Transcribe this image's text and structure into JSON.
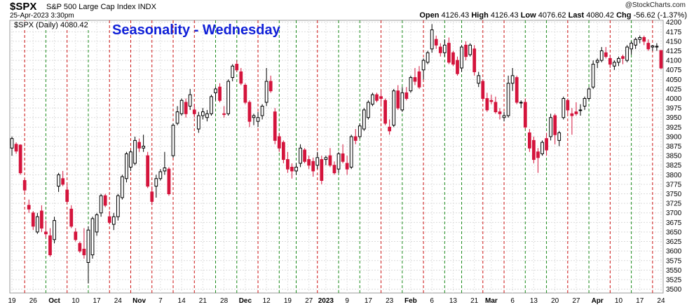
{
  "header": {
    "symbol": "$SPX",
    "description": "S&P 500 Large Cap Index  INDX",
    "datetime": "25-Apr-2023 3:30pm",
    "watermark": "@StockCharts.com",
    "open_label": "Open",
    "open": "4126.43",
    "high_label": "High",
    "high": "4126.43",
    "low_label": "Low",
    "low": "4076.62",
    "last_label": "Last",
    "last": "4080.42",
    "chg_label": "Chg",
    "chg": "-56.62 (-1.37%)"
  },
  "legend": "$SPX (Daily) 4080.42",
  "chart_data": {
    "type": "candlestick",
    "title": "Seasonality - Wednesday",
    "ylim": [
      3490,
      4205
    ],
    "y_ticks": [
      3500,
      3525,
      3550,
      3575,
      3600,
      3625,
      3650,
      3675,
      3700,
      3725,
      3750,
      3775,
      3800,
      3825,
      3850,
      3875,
      3900,
      3925,
      3950,
      3975,
      4000,
      4025,
      4050,
      4075,
      4100,
      4125,
      4150,
      4175,
      4200
    ],
    "x_tick_labels": [
      "19",
      "26",
      "Oct",
      "10",
      "17",
      "24",
      "Nov",
      "7",
      "14",
      "21",
      "28",
      "Dec",
      "12",
      "19",
      "27",
      "2023",
      "9",
      "17",
      "23",
      "Feb",
      "6",
      "13",
      "21",
      "Mar",
      "6",
      "13",
      "20",
      "27",
      "Apr",
      "10",
      "17",
      "24"
    ],
    "x_tick_bar_index": [
      0,
      5,
      10,
      15,
      20,
      25,
      30,
      35,
      40,
      45,
      50,
      55,
      60,
      65,
      70,
      74,
      79,
      84,
      89,
      94,
      99,
      104,
      109,
      113,
      118,
      123,
      128,
      133,
      138,
      143,
      148,
      153
    ],
    "wednesday_lines": {
      "colors": {
        "up": "#1a8a1a",
        "down": "#cc1111"
      },
      "days": [
        {
          "bar": 3,
          "dir": "down"
        },
        {
          "bar": 8,
          "dir": "up"
        },
        {
          "bar": 13,
          "dir": "down"
        },
        {
          "bar": 18,
          "dir": "up"
        },
        {
          "bar": 23,
          "dir": "down"
        },
        {
          "bar": 28,
          "dir": "down"
        },
        {
          "bar": 33,
          "dir": "down"
        },
        {
          "bar": 38,
          "dir": "down"
        },
        {
          "bar": 43,
          "dir": "down"
        },
        {
          "bar": 48,
          "dir": "up"
        },
        {
          "bar": 53,
          "dir": "up"
        },
        {
          "bar": 58,
          "dir": "down"
        },
        {
          "bar": 63,
          "dir": "up"
        },
        {
          "bar": 67,
          "dir": "up"
        },
        {
          "bar": 72,
          "dir": "down"
        },
        {
          "bar": 77,
          "dir": "up"
        },
        {
          "bar": 82,
          "dir": "up"
        },
        {
          "bar": 87,
          "dir": "down"
        },
        {
          "bar": 92,
          "dir": "up"
        },
        {
          "bar": 97,
          "dir": "down"
        },
        {
          "bar": 102,
          "dir": "up"
        },
        {
          "bar": 106,
          "dir": "up"
        },
        {
          "bar": 111,
          "dir": "down"
        },
        {
          "bar": 116,
          "dir": "down"
        },
        {
          "bar": 121,
          "dir": "up"
        },
        {
          "bar": 126,
          "dir": "up"
        },
        {
          "bar": 131,
          "dir": "down"
        },
        {
          "bar": 136,
          "dir": "up"
        },
        {
          "bar": 141,
          "dir": "down"
        },
        {
          "bar": 146,
          "dir": "up"
        },
        {
          "bar": 151,
          "dir": "down"
        }
      ]
    },
    "candles": [
      {
        "o": 3870,
        "h": 3900,
        "l": 3850,
        "c": 3895
      },
      {
        "o": 3880,
        "h": 3885,
        "l": 3855,
        "c": 3862
      },
      {
        "o": 3878,
        "h": 3880,
        "l": 3800,
        "c": 3805
      },
      {
        "o": 3785,
        "h": 3790,
        "l": 3755,
        "c": 3760
      },
      {
        "o": 3720,
        "h": 3735,
        "l": 3700,
        "c": 3710
      },
      {
        "o": 3700,
        "h": 3705,
        "l": 3655,
        "c": 3665
      },
      {
        "o": 3650,
        "h": 3700,
        "l": 3645,
        "c": 3690
      },
      {
        "o": 3705,
        "h": 3720,
        "l": 3650,
        "c": 3660
      },
      {
        "o": 3650,
        "h": 3680,
        "l": 3635,
        "c": 3645
      },
      {
        "o": 3640,
        "h": 3660,
        "l": 3585,
        "c": 3590
      },
      {
        "o": 3630,
        "h": 3690,
        "l": 3620,
        "c": 3680
      },
      {
        "o": 3770,
        "h": 3805,
        "l": 3755,
        "c": 3800
      },
      {
        "o": 3790,
        "h": 3810,
        "l": 3770,
        "c": 3775
      },
      {
        "o": 3760,
        "h": 3775,
        "l": 3725,
        "c": 3730
      },
      {
        "o": 3710,
        "h": 3720,
        "l": 3660,
        "c": 3665
      },
      {
        "o": 3650,
        "h": 3660,
        "l": 3625,
        "c": 3630
      },
      {
        "o": 3620,
        "h": 3625,
        "l": 3595,
        "c": 3600
      },
      {
        "o": 3605,
        "h": 3660,
        "l": 3580,
        "c": 3590
      },
      {
        "o": 3570,
        "h": 3665,
        "l": 3515,
        "c": 3655
      },
      {
        "o": 3590,
        "h": 3690,
        "l": 3580,
        "c": 3685
      },
      {
        "o": 3650,
        "h": 3700,
        "l": 3640,
        "c": 3695
      },
      {
        "o": 3700,
        "h": 3750,
        "l": 3690,
        "c": 3745
      },
      {
        "o": 3745,
        "h": 3750,
        "l": 3715,
        "c": 3720
      },
      {
        "o": 3690,
        "h": 3705,
        "l": 3670,
        "c": 3675
      },
      {
        "o": 3670,
        "h": 3700,
        "l": 3655,
        "c": 3690
      },
      {
        "o": 3690,
        "h": 3750,
        "l": 3680,
        "c": 3745
      },
      {
        "o": 3740,
        "h": 3800,
        "l": 3735,
        "c": 3795
      },
      {
        "o": 3790,
        "h": 3860,
        "l": 3780,
        "c": 3855
      },
      {
        "o": 3820,
        "h": 3865,
        "l": 3810,
        "c": 3860
      },
      {
        "o": 3830,
        "h": 3900,
        "l": 3825,
        "c": 3890
      },
      {
        "o": 3885,
        "h": 3895,
        "l": 3860,
        "c": 3870
      },
      {
        "o": 3870,
        "h": 3905,
        "l": 3860,
        "c": 3875
      },
      {
        "o": 3850,
        "h": 3860,
        "l": 3765,
        "c": 3770
      },
      {
        "o": 3755,
        "h": 3770,
        "l": 3720,
        "c": 3730
      },
      {
        "o": 3770,
        "h": 3800,
        "l": 3740,
        "c": 3790
      },
      {
        "o": 3790,
        "h": 3815,
        "l": 3785,
        "c": 3808
      },
      {
        "o": 3810,
        "h": 3860,
        "l": 3800,
        "c": 3818
      },
      {
        "o": 3815,
        "h": 3820,
        "l": 3745,
        "c": 3750
      },
      {
        "o": 3850,
        "h": 3935,
        "l": 3845,
        "c": 3930
      },
      {
        "o": 3935,
        "h": 3980,
        "l": 3930,
        "c": 3965
      },
      {
        "o": 3960,
        "h": 4000,
        "l": 3955,
        "c": 3995
      },
      {
        "o": 3990,
        "h": 4000,
        "l": 3950,
        "c": 3960
      },
      {
        "o": 3980,
        "h": 4025,
        "l": 3970,
        "c": 4010
      },
      {
        "o": 3970,
        "h": 3985,
        "l": 3950,
        "c": 3960
      },
      {
        "o": 3920,
        "h": 3965,
        "l": 3910,
        "c": 3955
      },
      {
        "o": 3955,
        "h": 3975,
        "l": 3945,
        "c": 3965
      },
      {
        "o": 3950,
        "h": 3970,
        "l": 3940,
        "c": 3960
      },
      {
        "o": 3960,
        "h": 4010,
        "l": 3955,
        "c": 4005
      },
      {
        "o": 4015,
        "h": 4030,
        "l": 3995,
        "c": 4025
      },
      {
        "o": 4030,
        "h": 4040,
        "l": 3990,
        "c": 3995
      },
      {
        "o": 3960,
        "h": 3980,
        "l": 3950,
        "c": 3958
      },
      {
        "o": 3960,
        "h": 4050,
        "l": 3955,
        "c": 4045
      },
      {
        "o": 4055,
        "h": 4090,
        "l": 4045,
        "c": 4085
      },
      {
        "o": 4090,
        "h": 4100,
        "l": 4070,
        "c": 4075
      },
      {
        "o": 4070,
        "h": 4080,
        "l": 4035,
        "c": 4040
      },
      {
        "o": 4035,
        "h": 4040,
        "l": 3985,
        "c": 3990
      },
      {
        "o": 3990,
        "h": 3995,
        "l": 3925,
        "c": 3940
      },
      {
        "o": 3950,
        "h": 3960,
        "l": 3930,
        "c": 3955
      },
      {
        "o": 3940,
        "h": 3965,
        "l": 3925,
        "c": 3950
      },
      {
        "o": 3955,
        "h": 3985,
        "l": 3945,
        "c": 3980
      },
      {
        "o": 3990,
        "h": 4080,
        "l": 3980,
        "c": 4045
      },
      {
        "o": 4045,
        "h": 4060,
        "l": 4015,
        "c": 4020
      },
      {
        "o": 3965,
        "h": 3975,
        "l": 3880,
        "c": 3890
      },
      {
        "o": 3900,
        "h": 3910,
        "l": 3860,
        "c": 3870
      },
      {
        "o": 3885,
        "h": 3890,
        "l": 3830,
        "c": 3840
      },
      {
        "o": 3840,
        "h": 3860,
        "l": 3805,
        "c": 3815
      },
      {
        "o": 3820,
        "h": 3830,
        "l": 3790,
        "c": 3810
      },
      {
        "o": 3810,
        "h": 3830,
        "l": 3800,
        "c": 3820
      },
      {
        "o": 3830,
        "h": 3880,
        "l": 3820,
        "c": 3870
      },
      {
        "o": 3865,
        "h": 3870,
        "l": 3830,
        "c": 3835
      },
      {
        "o": 3840,
        "h": 3850,
        "l": 3815,
        "c": 3825
      },
      {
        "o": 3835,
        "h": 3845,
        "l": 3795,
        "c": 3810
      },
      {
        "o": 3825,
        "h": 3860,
        "l": 3815,
        "c": 3845
      },
      {
        "o": 3840,
        "h": 3850,
        "l": 3775,
        "c": 3785
      },
      {
        "o": 3840,
        "h": 3850,
        "l": 3825,
        "c": 3845
      },
      {
        "o": 3850,
        "h": 3870,
        "l": 3820,
        "c": 3825
      },
      {
        "o": 3825,
        "h": 3835,
        "l": 3800,
        "c": 3805
      },
      {
        "o": 3815,
        "h": 3860,
        "l": 3805,
        "c": 3855
      },
      {
        "o": 3855,
        "h": 3880,
        "l": 3830,
        "c": 3835
      },
      {
        "o": 3830,
        "h": 3850,
        "l": 3800,
        "c": 3815
      },
      {
        "o": 3820,
        "h": 3905,
        "l": 3815,
        "c": 3900
      },
      {
        "o": 3900,
        "h": 3920,
        "l": 3880,
        "c": 3890
      },
      {
        "o": 3900,
        "h": 3935,
        "l": 3895,
        "c": 3928
      },
      {
        "o": 3920,
        "h": 3975,
        "l": 3915,
        "c": 3970
      },
      {
        "o": 3950,
        "h": 3995,
        "l": 3945,
        "c": 3990
      },
      {
        "o": 3985,
        "h": 4015,
        "l": 3980,
        "c": 4010
      },
      {
        "o": 4010,
        "h": 4015,
        "l": 3990,
        "c": 3995
      },
      {
        "o": 4005,
        "h": 4020,
        "l": 3985,
        "c": 4000
      },
      {
        "o": 3995,
        "h": 4000,
        "l": 3930,
        "c": 3935
      },
      {
        "o": 3925,
        "h": 3945,
        "l": 3905,
        "c": 3915
      },
      {
        "o": 3930,
        "h": 4025,
        "l": 3925,
        "c": 4020
      },
      {
        "o": 4020,
        "h": 4035,
        "l": 3970,
        "c": 3975
      },
      {
        "o": 3970,
        "h": 4030,
        "l": 3965,
        "c": 4015
      },
      {
        "o": 4015,
        "h": 4030,
        "l": 3995,
        "c": 4000
      },
      {
        "o": 4020,
        "h": 4060,
        "l": 4015,
        "c": 4055
      },
      {
        "o": 4055,
        "h": 4080,
        "l": 4035,
        "c": 4045
      },
      {
        "o": 4070,
        "h": 4085,
        "l": 4025,
        "c": 4030
      },
      {
        "o": 4075,
        "h": 4105,
        "l": 4050,
        "c": 4100
      },
      {
        "o": 4095,
        "h": 4125,
        "l": 4090,
        "c": 4120
      },
      {
        "o": 4130,
        "h": 4195,
        "l": 4120,
        "c": 4180
      },
      {
        "o": 4155,
        "h": 4165,
        "l": 4130,
        "c": 4140
      },
      {
        "o": 4135,
        "h": 4145,
        "l": 4110,
        "c": 4120
      },
      {
        "o": 4120,
        "h": 4155,
        "l": 4110,
        "c": 4140
      },
      {
        "o": 4145,
        "h": 4160,
        "l": 4090,
        "c": 4095
      },
      {
        "o": 4120,
        "h": 4125,
        "l": 4085,
        "c": 4090
      },
      {
        "o": 4100,
        "h": 4110,
        "l": 4060,
        "c": 4065
      },
      {
        "o": 4080,
        "h": 4140,
        "l": 4070,
        "c": 4135
      },
      {
        "o": 4140,
        "h": 4150,
        "l": 4100,
        "c": 4110
      },
      {
        "o": 4115,
        "h": 4145,
        "l": 4110,
        "c": 4140
      },
      {
        "o": 4130,
        "h": 4140,
        "l": 4060,
        "c": 4070
      },
      {
        "o": 4040,
        "h": 4070,
        "l": 4030,
        "c": 4060
      },
      {
        "o": 4045,
        "h": 4050,
        "l": 3995,
        "c": 4000
      },
      {
        "o": 4000,
        "h": 4015,
        "l": 3965,
        "c": 3970
      },
      {
        "o": 3995,
        "h": 4010,
        "l": 3985,
        "c": 3992
      },
      {
        "o": 3990,
        "h": 4005,
        "l": 3960,
        "c": 3965
      },
      {
        "o": 3965,
        "h": 3975,
        "l": 3945,
        "c": 3960
      },
      {
        "o": 3950,
        "h": 3965,
        "l": 3940,
        "c": 3955
      },
      {
        "o": 3955,
        "h": 4060,
        "l": 3950,
        "c": 4040
      },
      {
        "o": 4040,
        "h": 4080,
        "l": 4020,
        "c": 4060
      },
      {
        "o": 4055,
        "h": 4060,
        "l": 3985,
        "c": 3990
      },
      {
        "o": 3990,
        "h": 3995,
        "l": 3975,
        "c": 3990
      },
      {
        "o": 3990,
        "h": 4000,
        "l": 3920,
        "c": 3925
      },
      {
        "o": 3910,
        "h": 3920,
        "l": 3860,
        "c": 3870
      },
      {
        "o": 3890,
        "h": 3900,
        "l": 3830,
        "c": 3840
      },
      {
        "o": 3860,
        "h": 3870,
        "l": 3805,
        "c": 3845
      },
      {
        "o": 3855,
        "h": 3890,
        "l": 3850,
        "c": 3885
      },
      {
        "o": 3895,
        "h": 3910,
        "l": 3850,
        "c": 3865
      },
      {
        "o": 3900,
        "h": 3960,
        "l": 3890,
        "c": 3950
      },
      {
        "o": 3955,
        "h": 3960,
        "l": 3880,
        "c": 3905
      },
      {
        "o": 3890,
        "h": 3915,
        "l": 3875,
        "c": 3910
      },
      {
        "o": 3950,
        "h": 4005,
        "l": 3945,
        "c": 4000
      },
      {
        "o": 3995,
        "h": 4000,
        "l": 3960,
        "c": 3970
      },
      {
        "o": 3960,
        "h": 3975,
        "l": 3905,
        "c": 3955
      },
      {
        "o": 3965,
        "h": 3990,
        "l": 3955,
        "c": 3960
      },
      {
        "o": 3970,
        "h": 3985,
        "l": 3955,
        "c": 3970
      },
      {
        "o": 3980,
        "h": 4005,
        "l": 3970,
        "c": 4000
      },
      {
        "o": 4000,
        "h": 4030,
        "l": 3995,
        "c": 4025
      },
      {
        "o": 4030,
        "h": 4100,
        "l": 4025,
        "c": 4090
      },
      {
        "o": 4095,
        "h": 4105,
        "l": 4080,
        "c": 4100
      },
      {
        "o": 4100,
        "h": 4135,
        "l": 4095,
        "c": 4125
      },
      {
        "o": 4120,
        "h": 4135,
        "l": 4105,
        "c": 4110
      },
      {
        "o": 4105,
        "h": 4115,
        "l": 4080,
        "c": 4090
      },
      {
        "o": 4085,
        "h": 4100,
        "l": 4075,
        "c": 4095
      },
      {
        "o": 4095,
        "h": 4110,
        "l": 4085,
        "c": 4105
      },
      {
        "o": 4110,
        "h": 4115,
        "l": 4090,
        "c": 4105
      },
      {
        "o": 4100,
        "h": 4140,
        "l": 4095,
        "c": 4135
      },
      {
        "o": 4130,
        "h": 4150,
        "l": 4115,
        "c": 4145
      },
      {
        "o": 4140,
        "h": 4160,
        "l": 4130,
        "c": 4155
      },
      {
        "o": 4155,
        "h": 4165,
        "l": 4145,
        "c": 4160
      },
      {
        "o": 4160,
        "h": 4165,
        "l": 4140,
        "c": 4150
      },
      {
        "o": 4145,
        "h": 4155,
        "l": 4125,
        "c": 4130
      },
      {
        "o": 4135,
        "h": 4140,
        "l": 4125,
        "c": 4138
      },
      {
        "o": 4135,
        "h": 4145,
        "l": 4125,
        "c": 4137
      },
      {
        "o": 4126,
        "h": 4126,
        "l": 4077,
        "c": 4080
      }
    ]
  }
}
